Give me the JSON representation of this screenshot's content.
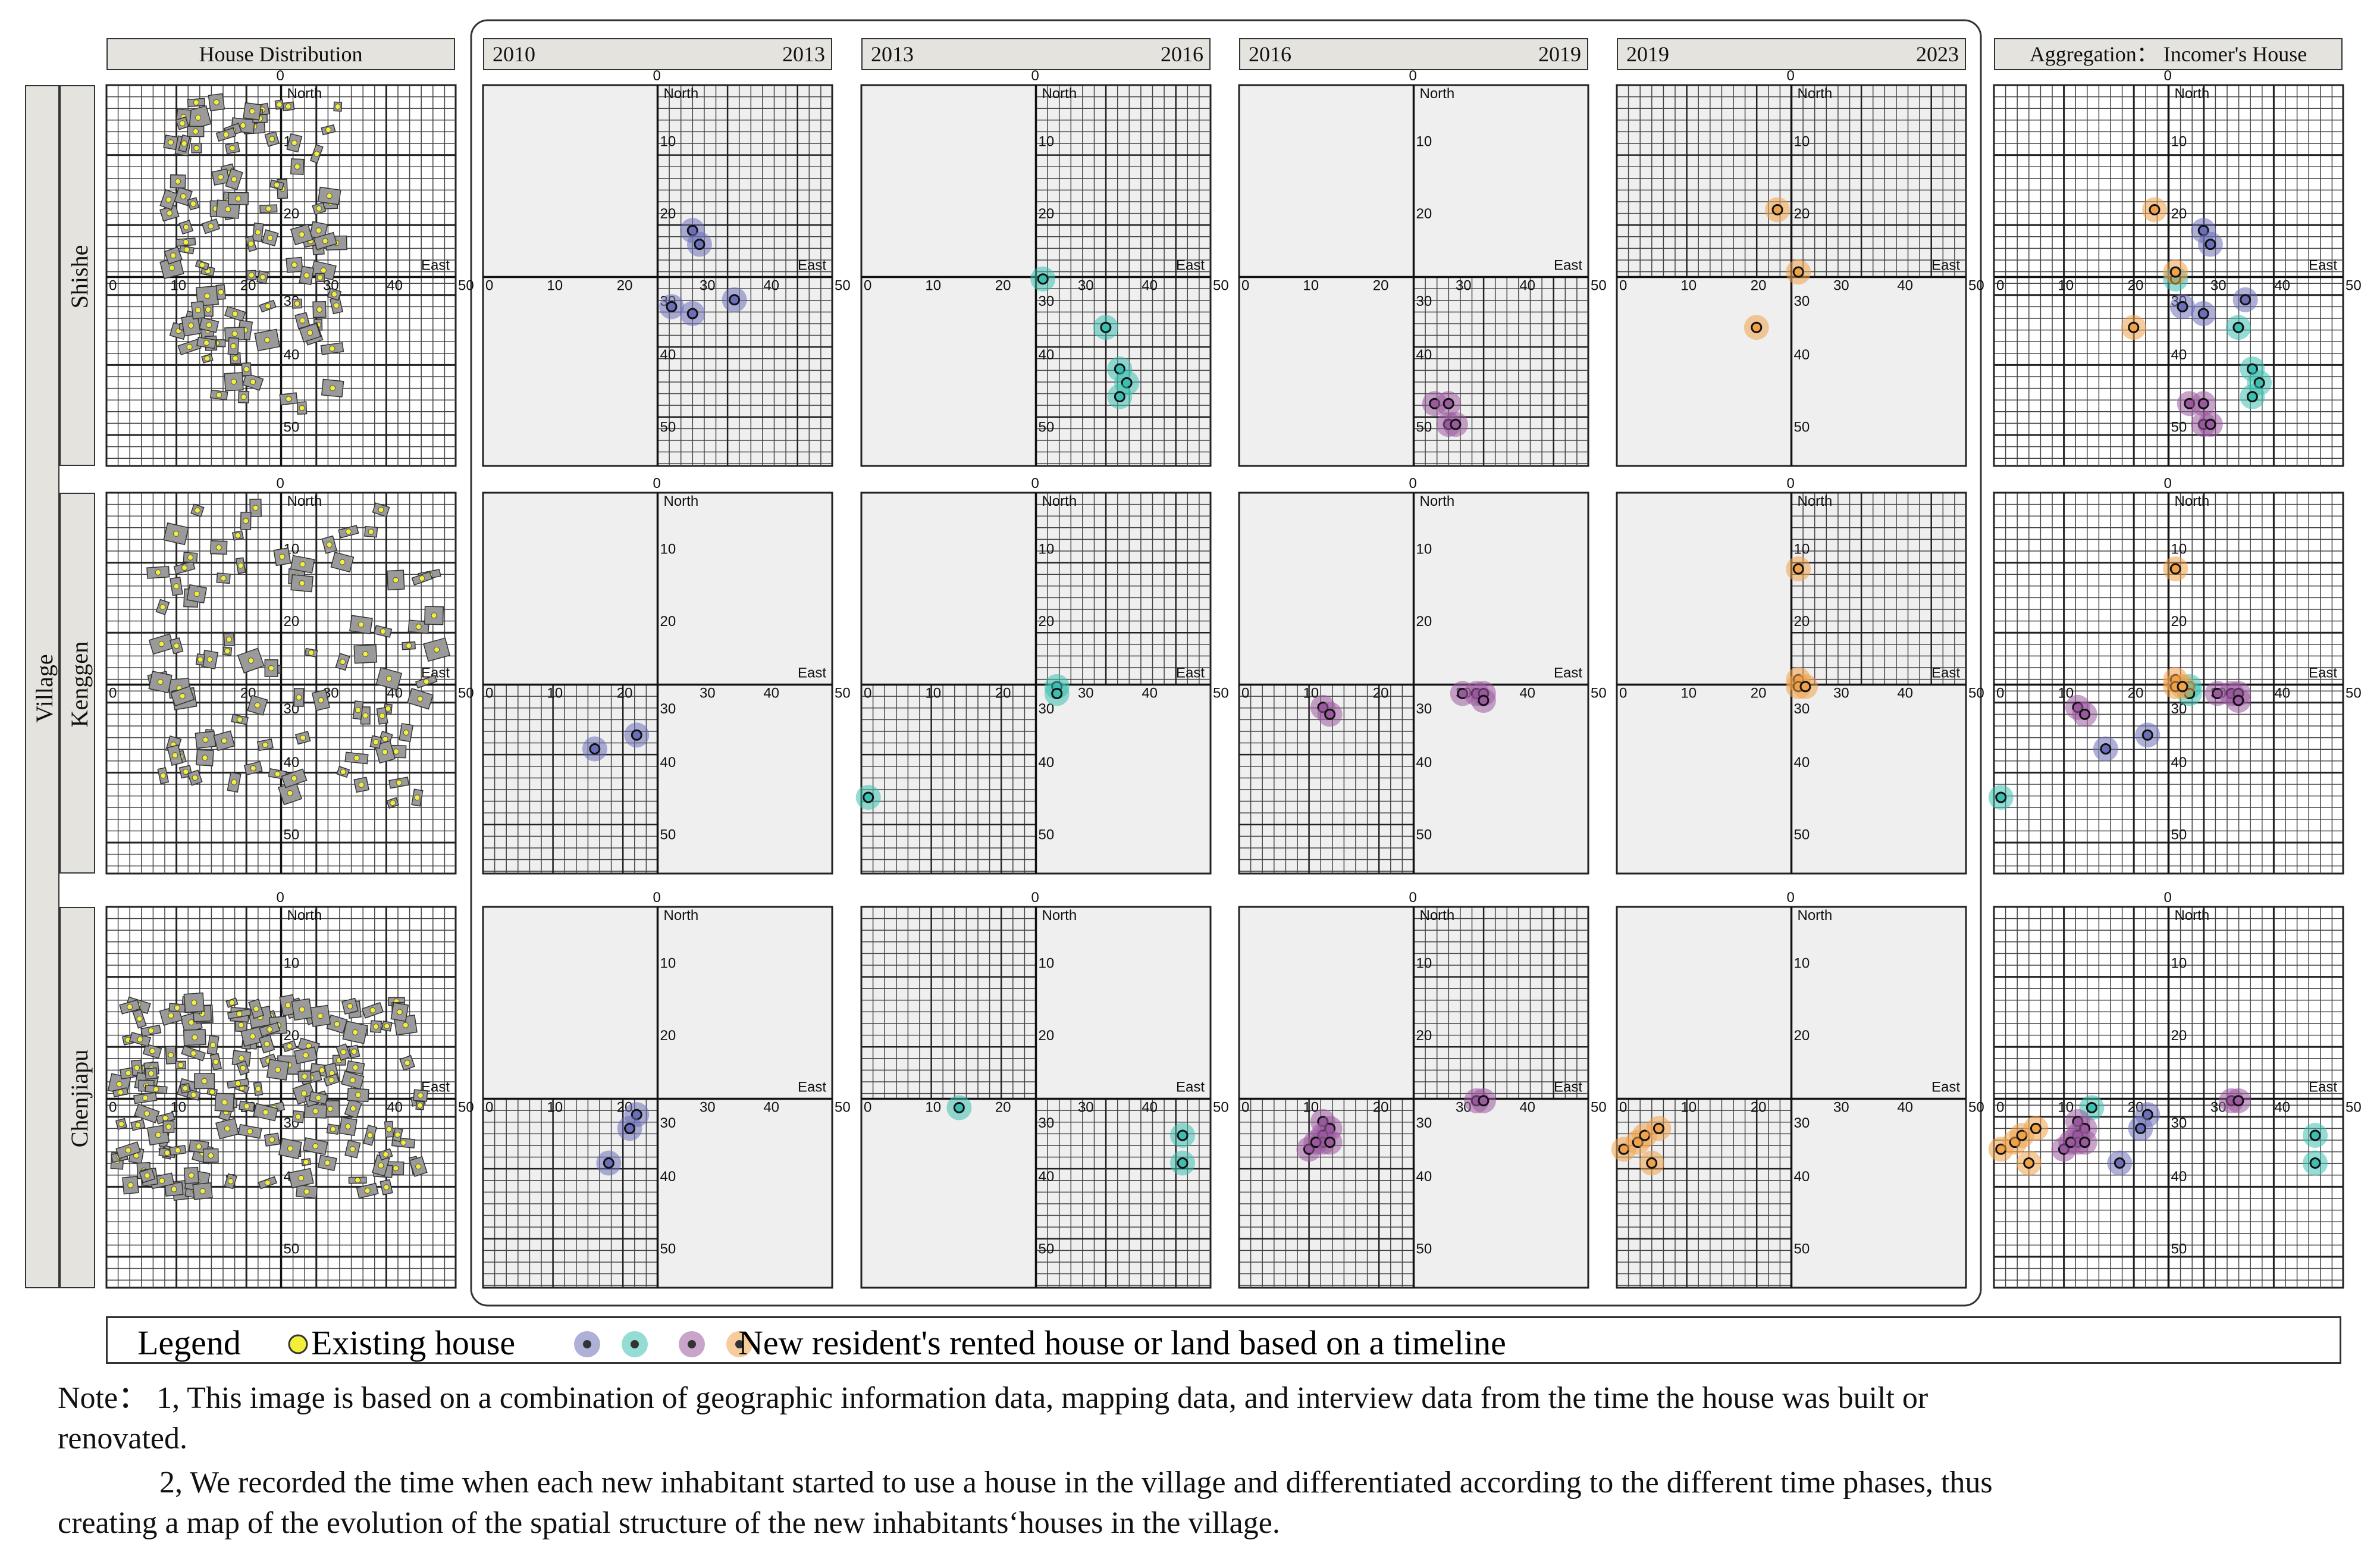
{
  "title_bar": {
    "house_distribution": "House Distribution",
    "aggregation": "Aggregation： Incomer's House"
  },
  "periods": [
    {
      "start": "2010",
      "end": "2013",
      "color": "#6b6fb8"
    },
    {
      "start": "2013",
      "end": "2016",
      "color": "#3cbfb0"
    },
    {
      "start": "2016",
      "end": "2019",
      "color": "#9a5a9e"
    },
    {
      "start": "2019",
      "end": "2023",
      "color": "#f0a24a"
    }
  ],
  "row_axis_label": "Village",
  "villages": [
    "Shishe",
    "Kenggen",
    "Chenjiapu"
  ],
  "axis_labels": {
    "north": "North",
    "east": "East"
  },
  "ticks": [
    "0",
    "10",
    "20",
    "30",
    "40",
    "50"
  ],
  "legend": {
    "title": "Legend",
    "existing": "Existing house",
    "new_resident": "New resident's rented house or land based on a timeline",
    "existing_color": "#f2ee3a"
  },
  "note": {
    "line1": "Note： 1, This image is based on a combination of geographic information data, mapping data, and interview data from the time the house was built or",
    "line2": "renovated.",
    "line3": "2, We recorded the time when each new inhabitant started to use a house in the village and differentiated according to the different time phases, thus",
    "line4": "creating a map of the evolution of the spatial structure of the new inhabitants‘houses in the village."
  },
  "chart_data": {
    "type": "scatter",
    "coordinate_system": "grid 0-50 east (x), 0-55 south from north edge (y), origin of cross at (25,27)",
    "series": [
      {
        "name": "2010-2013",
        "points": {
          "Shishe": [
            [
              30,
              21
            ],
            [
              31,
              23
            ],
            [
              27,
              32
            ],
            [
              30,
              33
            ],
            [
              36,
              31
            ]
          ],
          "Kenggen": [
            [
              16,
              37
            ],
            [
              22,
              35
            ]
          ],
          "Chenjiapu": [
            [
              22,
              30
            ],
            [
              21,
              32
            ],
            [
              18,
              37
            ]
          ]
        }
      },
      {
        "name": "2013-2016",
        "points": {
          "Shishe": [
            [
              26,
              28
            ],
            [
              35,
              35
            ],
            [
              37,
              41
            ],
            [
              38,
              43
            ],
            [
              37,
              45
            ]
          ],
          "Kenggen": [
            [
              28,
              28
            ],
            [
              28,
              29
            ],
            [
              1,
              44
            ]
          ],
          "Chenjiapu": [
            [
              14,
              29
            ],
            [
              46,
              33
            ],
            [
              46,
              37
            ]
          ]
        }
      },
      {
        "name": "2016-2019",
        "points": {
          "Shishe": [
            [
              28,
              46
            ],
            [
              30,
              46
            ],
            [
              30,
              49
            ],
            [
              31,
              49
            ]
          ],
          "Kenggen": [
            [
              12,
              31
            ],
            [
              13,
              32
            ],
            [
              32,
              29
            ],
            [
              34,
              29
            ],
            [
              35,
              29
            ],
            [
              35,
              30
            ]
          ],
          "Chenjiapu": [
            [
              12,
              31
            ],
            [
              13,
              32
            ],
            [
              12,
              33
            ],
            [
              12,
              34
            ],
            [
              10,
              35
            ],
            [
              11,
              34
            ],
            [
              13,
              34
            ],
            [
              34,
              28
            ],
            [
              35,
              28
            ]
          ]
        }
      },
      {
        "name": "2019-2023",
        "points": {
          "Shishe": [
            [
              23,
              18
            ],
            [
              26,
              27
            ],
            [
              20,
              35
            ]
          ],
          "Kenggen": [
            [
              26,
              11
            ],
            [
              26,
              27
            ],
            [
              26,
              28
            ],
            [
              27,
              28
            ]
          ],
          "Chenjiapu": [
            [
              1,
              35
            ],
            [
              3,
              34
            ],
            [
              4,
              33
            ],
            [
              6,
              32
            ],
            [
              5,
              37
            ]
          ]
        }
      }
    ]
  }
}
